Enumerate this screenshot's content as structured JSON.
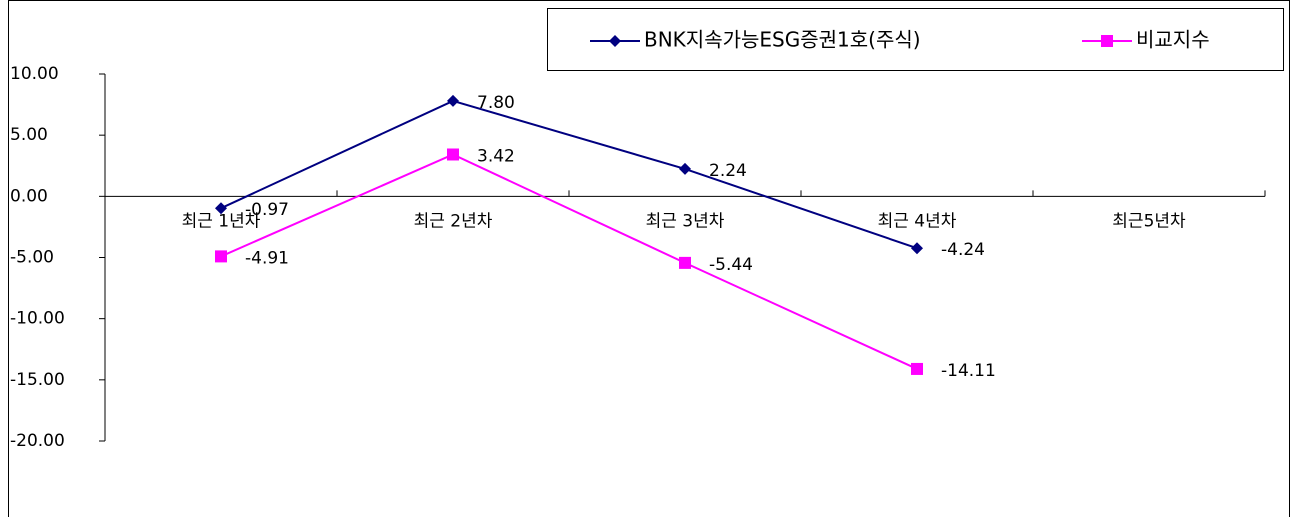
{
  "chart_data": {
    "type": "line",
    "categories": [
      "최근 1년차",
      "최근 2년차",
      "최근 3년차",
      "최근 4년차",
      "최근5년차"
    ],
    "series": [
      {
        "name": "BNK지속가능ESG증권1호(주식)",
        "color": "#000080",
        "marker": "diamond",
        "values": [
          -0.97,
          7.8,
          2.24,
          -4.24,
          null
        ],
        "value_labels": [
          "-0.97",
          "7.80",
          "2.24",
          "-4.24",
          null
        ]
      },
      {
        "name": "비교지수",
        "color": "#ff00ff",
        "marker": "square",
        "values": [
          -4.91,
          3.42,
          -5.44,
          -14.11,
          null
        ],
        "value_labels": [
          "-4.91",
          "3.42",
          "-5.44",
          "-14.11",
          null
        ]
      }
    ],
    "ylim": [
      -20,
      10
    ],
    "yticks": [
      {
        "value": -20,
        "label": "-20.00"
      },
      {
        "value": -15,
        "label": "-15.00"
      },
      {
        "value": -10,
        "label": "-10.00"
      },
      {
        "value": -5,
        "label": "-5.00"
      },
      {
        "value": 0,
        "label": "0.00"
      },
      {
        "value": 5,
        "label": "5.00"
      },
      {
        "value": 10,
        "label": "10.00"
      }
    ],
    "legend": "top-right"
  }
}
